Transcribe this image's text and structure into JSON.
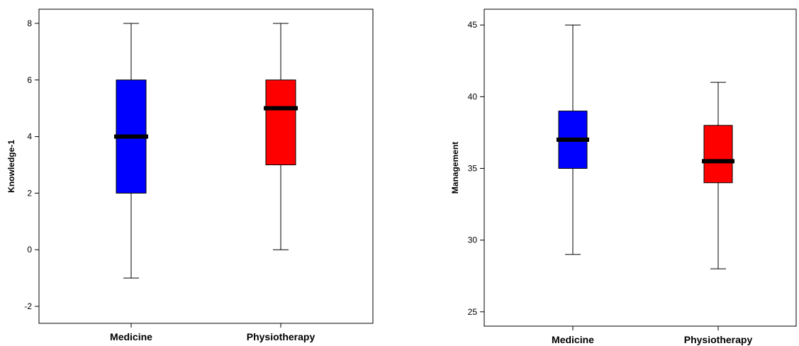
{
  "chart_data": [
    {
      "type": "box",
      "xlabel": "",
      "ylabel": "Knowledge-1",
      "categories": [
        "Medicine",
        "Physiotherapy"
      ],
      "ylim": [
        -2.6,
        8.5
      ],
      "yticks": [
        -2,
        0,
        2,
        4,
        6,
        8
      ],
      "grid": false,
      "boxes": [
        {
          "category": "Medicine",
          "min": -1,
          "q1": 2,
          "median": 4,
          "q3": 6,
          "max": 8,
          "color": "#0000ff"
        },
        {
          "category": "Physiotherapy",
          "min": 0,
          "q1": 3,
          "median": 5,
          "q3": 6,
          "max": 8,
          "color": "#ff0000"
        }
      ]
    },
    {
      "type": "box",
      "xlabel": "",
      "ylabel": "Management",
      "categories": [
        "Medicine",
        "Physiotherapy"
      ],
      "ylim": [
        24,
        46.1
      ],
      "yticks": [
        25,
        30,
        35,
        40,
        45
      ],
      "grid": false,
      "boxes": [
        {
          "category": "Medicine",
          "min": 29,
          "q1": 35,
          "median": 37,
          "q3": 39,
          "max": 45,
          "color": "#0000ff"
        },
        {
          "category": "Physiotherapy",
          "min": 28,
          "q1": 34,
          "median": 35.5,
          "q3": 38,
          "max": 41,
          "color": "#ff0000"
        }
      ]
    }
  ]
}
